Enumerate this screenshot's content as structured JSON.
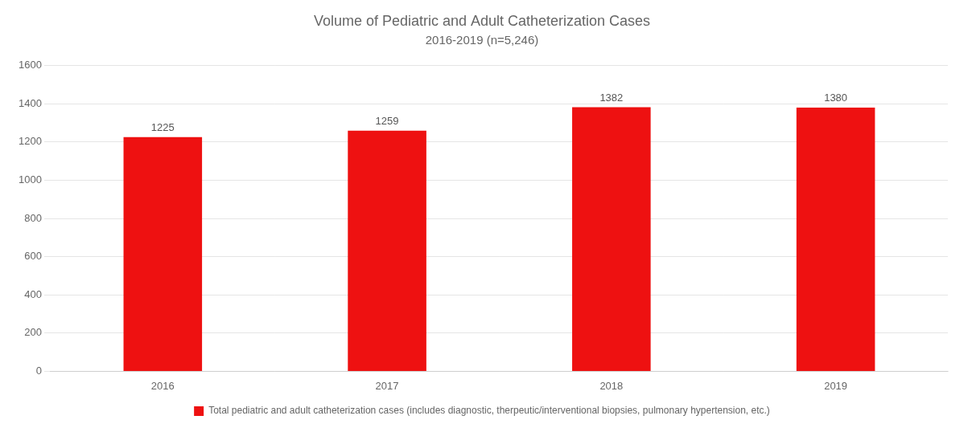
{
  "chart_data": {
    "type": "bar",
    "title": "Volume of Pediatric and Adult Catheterization Cases",
    "subtitle": "2016-2019 (n=5,246)",
    "categories": [
      "2016",
      "2017",
      "2018",
      "2019"
    ],
    "series": [
      {
        "name": "Total pediatric and adult catheterization cases (includes diagnostic, therpeutic/interventional biopsies, pulmonary hypertension, etc.)",
        "color": "#EE1111",
        "values": [
          1225,
          1259,
          1382,
          1380
        ]
      }
    ],
    "ylim": [
      0,
      1600
    ],
    "yticks": [
      0,
      200,
      400,
      600,
      800,
      1000,
      1200,
      1400,
      1600
    ],
    "grid": true,
    "legend": "bottom",
    "data_labels": true
  }
}
